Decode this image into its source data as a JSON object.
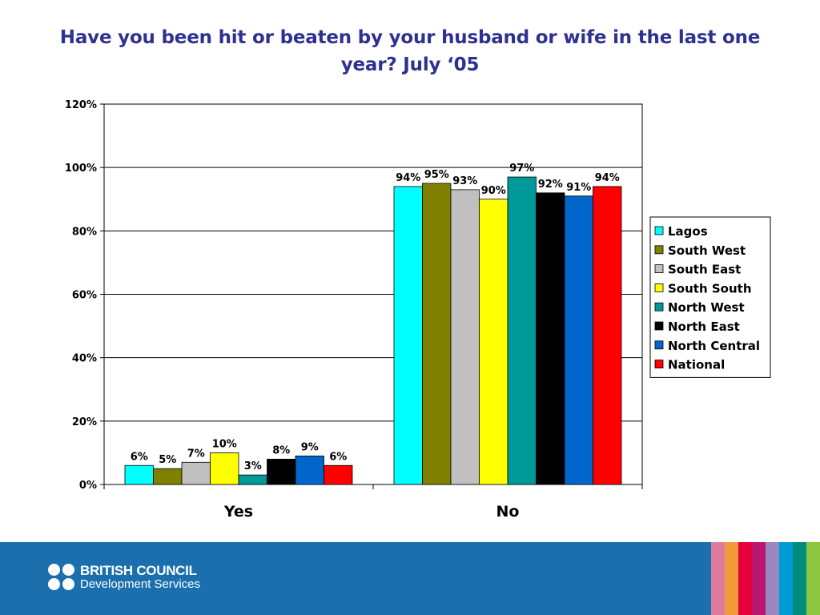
{
  "title": "Have you been hit or beaten by your husband or wife in the last one year? July ‘05",
  "chart_data": {
    "type": "bar",
    "title": "Have you been hit or beaten by your husband or wife in the last one year? July ‘05",
    "xlabel": "",
    "ylabel": "",
    "categories": [
      "Yes",
      "No"
    ],
    "series": [
      {
        "name": "Lagos",
        "color": "#00ffff",
        "values": [
          6,
          94
        ],
        "labels": [
          "6%",
          "94%"
        ]
      },
      {
        "name": "South West",
        "color": "#808000",
        "values": [
          5,
          95
        ],
        "labels": [
          "5%",
          "95%"
        ]
      },
      {
        "name": "South East",
        "color": "#c0c0c0",
        "values": [
          7,
          93
        ],
        "labels": [
          "7%",
          "93%"
        ]
      },
      {
        "name": "South South",
        "color": "#ffff00",
        "values": [
          10,
          90
        ],
        "labels": [
          "10%",
          "90%"
        ]
      },
      {
        "name": "North West",
        "color": "#009999",
        "values": [
          3,
          97
        ],
        "labels": [
          "3%",
          "97%"
        ]
      },
      {
        "name": "North East",
        "color": "#000000",
        "values": [
          8,
          92
        ],
        "labels": [
          "8%",
          "92%"
        ]
      },
      {
        "name": "North Central",
        "color": "#0066cc",
        "values": [
          9,
          91
        ],
        "labels": [
          "9%",
          "91%"
        ]
      },
      {
        "name": "National",
        "color": "#ff0000",
        "values": [
          6,
          94
        ],
        "labels": [
          "6%",
          "94%"
        ]
      }
    ],
    "ylim": [
      0,
      120
    ],
    "yticks": [
      0,
      20,
      40,
      60,
      80,
      100,
      120
    ],
    "ytick_labels": [
      "0%",
      "20%",
      "40%",
      "60%",
      "80%",
      "100%",
      "120%"
    ],
    "grid": true,
    "legend_position": "right"
  },
  "footer": {
    "logo_line1": "BRITISH COUNCIL",
    "logo_line2": "Development Services",
    "background_color": "#1c6fad",
    "stripe_colors": [
      "#e07ba0",
      "#f39a3b",
      "#e4003b",
      "#b8176e",
      "#9a87c0",
      "#009ad7",
      "#008c7a",
      "#8cc63f"
    ]
  }
}
